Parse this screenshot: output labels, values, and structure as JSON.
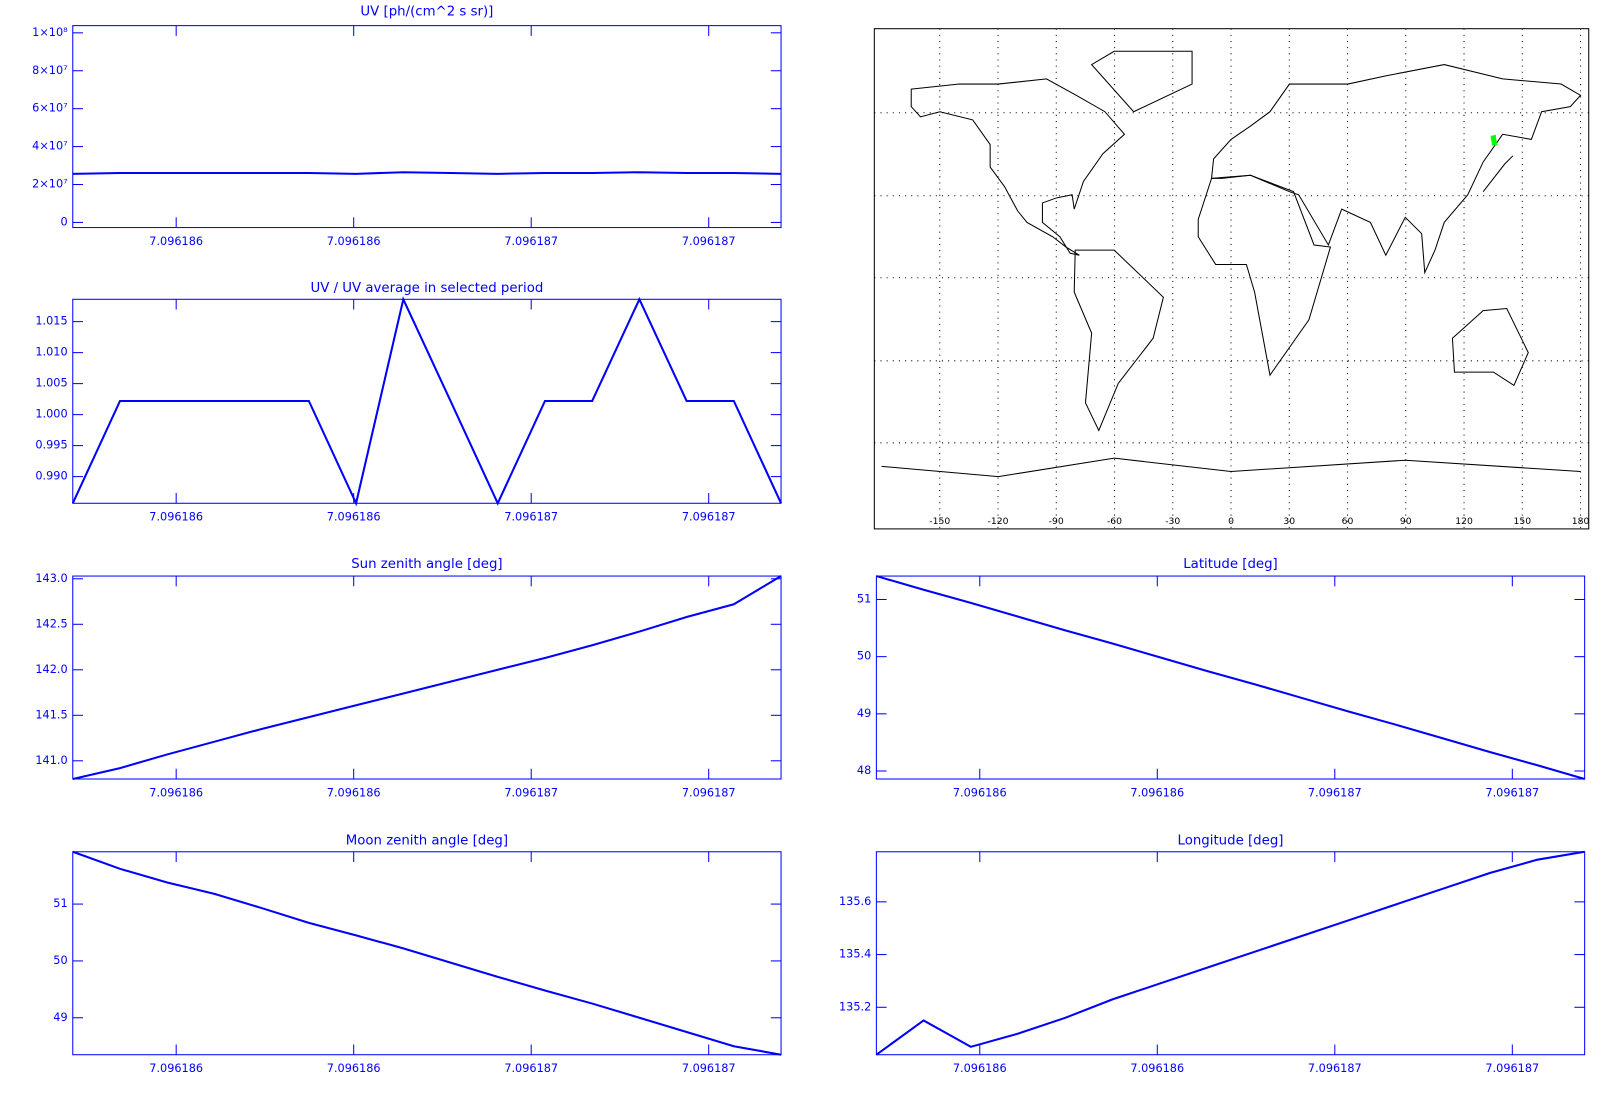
{
  "chart_data": [
    {
      "type": "line",
      "title": "UV [ph/(cm^2 s sr)]",
      "color": "#0000ff",
      "x": [
        7.0961860835,
        7.0961861367,
        7.0961861899,
        7.0961862431,
        7.0961862963,
        7.0961863495,
        7.0961864027,
        7.0961864559,
        7.0961865091,
        7.0961865623,
        7.0961866155,
        7.0961866687,
        7.0961867219,
        7.0961867751,
        7.0961868283,
        7.0961868815
      ],
      "values": [
        25630000,
        26060000,
        26060000,
        26060000,
        26060000,
        26060000,
        25630000,
        26480000,
        26060000,
        25630000,
        26060000,
        26060000,
        26480000,
        26060000,
        26060000,
        25630000
      ],
      "xlim": [
        7.0961860835,
        7.0961868815
      ],
      "ylim": [
        -2700000,
        103800000
      ],
      "xticks": [
        {
          "value": 7.0961862,
          "label": "7.096186"
        },
        {
          "value": 7.0961864,
          "label": "7.096186"
        },
        {
          "value": 7.0961866,
          "label": "7.096187"
        },
        {
          "value": 7.0961868,
          "label": "7.096187"
        }
      ],
      "yticks": [
        0,
        {
          "value": 20000000,
          "label": "2×10⁷"
        },
        {
          "value": 40000000,
          "label": "4×10⁷"
        },
        {
          "value": 60000000,
          "label": "6×10⁷"
        },
        {
          "value": 80000000,
          "label": "8×10⁷"
        },
        {
          "value": 100000000,
          "label": "1×10⁸"
        }
      ]
    },
    {
      "type": "line",
      "title": "UV / UV average in selected period",
      "color": "#0000ff",
      "x": [
        7.0961860835,
        7.0961861367,
        7.0961861899,
        7.0961862431,
        7.0961862963,
        7.0961863495,
        7.0961864027,
        7.0961864559,
        7.0961865091,
        7.0961865623,
        7.0961866155,
        7.0961866687,
        7.0961867219,
        7.0961867751,
        7.0961868283,
        7.0961868815
      ],
      "values": [
        0.9857,
        1.0022,
        1.0022,
        1.0022,
        1.0022,
        1.0022,
        0.9857,
        1.0186,
        1.0022,
        0.9857,
        1.0022,
        1.0022,
        1.0186,
        1.0022,
        1.0022,
        0.9857
      ],
      "xlim": [
        7.0961860835,
        7.0961868815
      ],
      "ylim": [
        0.9857,
        1.0186
      ],
      "xticks": [
        {
          "value": 7.0961862,
          "label": "7.096186"
        },
        {
          "value": 7.0961864,
          "label": "7.096186"
        },
        {
          "value": 7.0961866,
          "label": "7.096187"
        },
        {
          "value": 7.0961868,
          "label": "7.096187"
        }
      ],
      "yticks": [
        {
          "value": 0.99,
          "label": "0.990"
        },
        0.995,
        {
          "value": 1,
          "label": "1.000"
        },
        1.005,
        {
          "value": 1.01,
          "label": "1.010"
        },
        1.015
      ]
    },
    {
      "type": "map",
      "color": "#000000",
      "track_color": "#00ff00",
      "xlim": [
        -180,
        180
      ],
      "ylim": [
        -90,
        90
      ],
      "xticks": [
        -150,
        -120,
        -90,
        -60,
        -30,
        0,
        30,
        60,
        90,
        120,
        150,
        180
      ],
      "grid": true
    },
    {
      "type": "line",
      "title": "Sun zenith angle [deg]",
      "color": "#0000ff",
      "x": [
        7.0961860835,
        7.0961861367,
        7.0961861899,
        7.0961862431,
        7.0961862963,
        7.0961863495,
        7.0961864027,
        7.0961864559,
        7.0961865091,
        7.0961865623,
        7.0961866155,
        7.0961866687,
        7.0961867219,
        7.0961867751,
        7.0961868283,
        7.0961868815
      ],
      "values": [
        140.8,
        140.92,
        141.07,
        141.21,
        141.35,
        141.48,
        141.61,
        141.74,
        141.87,
        142.0,
        142.13,
        142.27,
        142.42,
        142.58,
        142.72,
        143.03
      ],
      "xlim": [
        7.0961860835,
        7.0961868815
      ],
      "ylim": [
        140.8,
        143.03
      ],
      "xticks": [
        {
          "value": 7.0961862,
          "label": "7.096186"
        },
        {
          "value": 7.0961864,
          "label": "7.096186"
        },
        {
          "value": 7.0961866,
          "label": "7.096187"
        },
        {
          "value": 7.0961868,
          "label": "7.096187"
        }
      ],
      "yticks": [
        {
          "value": 141,
          "label": "141.0"
        },
        141.5,
        {
          "value": 142,
          "label": "142.0"
        },
        142.5,
        {
          "value": 143,
          "label": "143.0"
        }
      ]
    },
    {
      "type": "line",
      "title": "Latitude [deg]",
      "color": "#0000ff",
      "x": [
        7.0961860835,
        7.0961861367,
        7.0961861899,
        7.0961862431,
        7.0961862963,
        7.0961863495,
        7.0961864027,
        7.0961864559,
        7.0961865091,
        7.0961865623,
        7.0961866155,
        7.0961866687,
        7.0961867219,
        7.0961867751,
        7.0961868283,
        7.0961868815
      ],
      "values": [
        51.41,
        51.17,
        50.94,
        50.7,
        50.46,
        50.23,
        49.99,
        49.75,
        49.52,
        49.28,
        49.04,
        48.81,
        48.57,
        48.33,
        48.1,
        47.86
      ],
      "xlim": [
        7.0961860835,
        7.0961868815
      ],
      "ylim": [
        47.86,
        51.41
      ],
      "xticks": [
        {
          "value": 7.0961862,
          "label": "7.096186"
        },
        {
          "value": 7.0961864,
          "label": "7.096186"
        },
        {
          "value": 7.0961866,
          "label": "7.096187"
        },
        {
          "value": 7.0961868,
          "label": "7.096187"
        }
      ],
      "yticks": [
        48,
        49,
        50,
        51
      ]
    },
    {
      "type": "line",
      "title": "Moon zenith angle [deg]",
      "color": "#0000ff",
      "x": [
        7.0961860835,
        7.0961861367,
        7.0961861899,
        7.0961862431,
        7.0961862963,
        7.0961863495,
        7.0961864027,
        7.0961864559,
        7.0961865091,
        7.0961865623,
        7.0961866155,
        7.0961866687,
        7.0961867219,
        7.0961867751,
        7.0961868283,
        7.0961868815
      ],
      "values": [
        51.92,
        51.62,
        51.38,
        51.18,
        50.93,
        50.67,
        50.45,
        50.22,
        49.97,
        49.72,
        49.48,
        49.25,
        49.0,
        48.75,
        48.5,
        48.35
      ],
      "xlim": [
        7.0961860835,
        7.0961868815
      ],
      "ylim": [
        48.35,
        51.92
      ],
      "xticks": [
        {
          "value": 7.0961862,
          "label": "7.096186"
        },
        {
          "value": 7.0961864,
          "label": "7.096186"
        },
        {
          "value": 7.0961866,
          "label": "7.096187"
        },
        {
          "value": 7.0961868,
          "label": "7.096187"
        }
      ],
      "yticks": [
        49,
        50,
        51
      ]
    },
    {
      "type": "line",
      "title": "Longitude [deg]",
      "color": "#0000ff",
      "x": [
        7.0961860835,
        7.0961861367,
        7.0961861899,
        7.0961862431,
        7.0961862963,
        7.0961863495,
        7.0961864027,
        7.0961864559,
        7.0961865091,
        7.0961865623,
        7.0961866155,
        7.0961866687,
        7.0961867219,
        7.0961867751,
        7.0961868283,
        7.0961868815
      ],
      "values": [
        135.02,
        135.15,
        135.05,
        135.1,
        135.16,
        135.23,
        135.29,
        135.35,
        135.41,
        135.47,
        135.53,
        135.59,
        135.65,
        135.71,
        135.76,
        135.79
      ],
      "xlim": [
        7.0961860835,
        7.0961868815
      ],
      "ylim": [
        135.02,
        135.79
      ],
      "xticks": [
        {
          "value": 7.0961862,
          "label": "7.096186"
        },
        {
          "value": 7.0961864,
          "label": "7.096186"
        },
        {
          "value": 7.0961866,
          "label": "7.096187"
        },
        {
          "value": 7.0961868,
          "label": "7.096187"
        }
      ],
      "yticks": [
        135.2,
        135.4,
        135.6
      ]
    }
  ]
}
